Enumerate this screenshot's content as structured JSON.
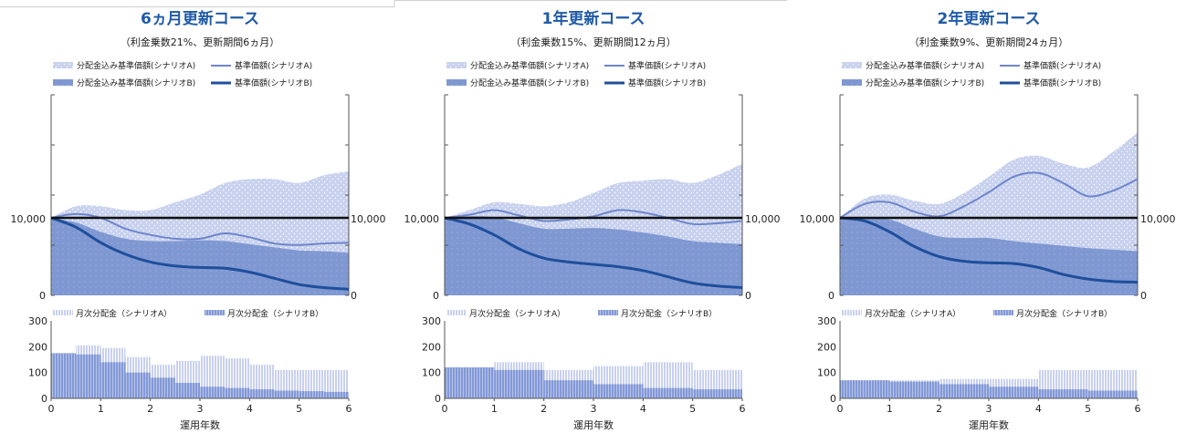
{
  "colors": {
    "light_band": "#c8d1ee",
    "dark_band": "#7f98d2",
    "line_a": "#6d86cc",
    "line_b": "#1f4f9c",
    "baseline": "#111111",
    "bar_a": "#c3ccec",
    "bar_b": "#8399d6",
    "title": "#1f5aa6"
  },
  "chart_data": [
    {
      "type": "area",
      "title": "6ヵ月更新コース",
      "subtitle": "（利金乗数21%、更新期間6ヵ月）",
      "legend_top": [
        "分配金込み基準価額(シナリオA)",
        "基準価額(シナリオA)",
        "分配金込み基準価額(シナリオB)",
        "基準価額(シナリオB)"
      ],
      "legend_bottom": [
        "月次分配金（シナリオA）",
        "月次分配金（シナリオB）"
      ],
      "xlabel": "運用年数",
      "x_ticks": [
        "0",
        "1",
        "2",
        "3",
        "4",
        "5",
        "6"
      ],
      "y_ticks_left": [
        "10,000",
        "0"
      ],
      "y_ticks_right": [
        "10,000",
        "0"
      ],
      "bar_y_ticks": [
        "300",
        "200",
        "100",
        "0"
      ],
      "x": [
        0,
        0.5,
        1,
        1.5,
        2,
        2.5,
        3,
        3.5,
        4,
        4.5,
        5,
        5.5,
        6
      ],
      "ylim": [
        0,
        27000
      ],
      "series": [
        {
          "name": "分配金込み基準価額(シナリオA)",
          "values": [
            10000,
            11500,
            11500,
            11000,
            11000,
            12000,
            13000,
            14500,
            15000,
            15000,
            14500,
            15500,
            16000
          ]
        },
        {
          "name": "基準価額(シナリオA)",
          "values": [
            10000,
            10500,
            10000,
            8600,
            7800,
            7300,
            7300,
            8000,
            7500,
            6700,
            6500,
            6700,
            6800
          ]
        },
        {
          "name": "分配金込み基準価額(シナリオB)",
          "values": [
            10000,
            9400,
            8200,
            7300,
            7000,
            7000,
            7100,
            7000,
            6600,
            6200,
            5800,
            5700,
            5500
          ]
        },
        {
          "name": "基準価額(シナリオB)",
          "values": [
            10000,
            8800,
            6800,
            5300,
            4300,
            3800,
            3600,
            3500,
            3000,
            2200,
            1400,
            1000,
            800
          ]
        }
      ],
      "bars": {
        "ylim": [
          0,
          300
        ],
        "years": [
          0,
          1,
          2,
          3,
          4,
          5,
          6
        ],
        "a_steps": [
          175,
          205,
          195,
          160,
          130,
          145,
          165,
          155,
          130,
          110,
          110,
          110
        ],
        "b_steps": [
          175,
          170,
          140,
          100,
          80,
          60,
          45,
          40,
          35,
          30,
          28,
          25
        ]
      }
    },
    {
      "type": "area",
      "title": "1年更新コース",
      "subtitle": "（利金乗数15%、更新期間12ヵ月）",
      "legend_top": [
        "分配金込み基準価額(シナリオA)",
        "基準価額(シナリオA)",
        "分配金込み基準価額(シナリオB)",
        "基準価額(シナリオB)"
      ],
      "legend_bottom": [
        "月次分配金（シナリオA）",
        "月次分配金（シナリオB）"
      ],
      "xlabel": "運用年数",
      "x_ticks": [
        "0",
        "1",
        "2",
        "3",
        "4",
        "5",
        "6"
      ],
      "y_ticks_left": [
        "10,000",
        "0"
      ],
      "y_ticks_right": [
        "10,000",
        "0"
      ],
      "bar_y_ticks": [
        "300",
        "200",
        "100",
        "0"
      ],
      "x": [
        0,
        0.5,
        1,
        1.5,
        2,
        2.5,
        3,
        3.5,
        4,
        4.5,
        5,
        5.5,
        6
      ],
      "ylim": [
        0,
        27000
      ],
      "series": [
        {
          "name": "分配金込み基準価額(シナリオA)",
          "values": [
            10000,
            11000,
            12000,
            11800,
            11500,
            12000,
            13200,
            14500,
            14800,
            15000,
            14500,
            15500,
            17000
          ]
        },
        {
          "name": "基準価額(シナリオA)",
          "values": [
            10000,
            10400,
            11000,
            10300,
            9600,
            9800,
            10200,
            11000,
            10700,
            10000,
            9200,
            9300,
            9600
          ]
        },
        {
          "name": "分配金込み基準価額(シナリオB)",
          "values": [
            10000,
            10200,
            10100,
            9300,
            8600,
            8600,
            8700,
            8500,
            8100,
            7600,
            7000,
            6800,
            6600
          ]
        },
        {
          "name": "基準価額(シナリオB)",
          "values": [
            10000,
            9200,
            7800,
            6000,
            4800,
            4300,
            4000,
            3700,
            3200,
            2400,
            1600,
            1200,
            1000
          ]
        }
      ],
      "bars": {
        "ylim": [
          0,
          300
        ],
        "years": [
          0,
          1,
          2,
          3,
          4,
          5,
          6
        ],
        "a_steps": [
          120,
          120,
          140,
          140,
          110,
          110,
          125,
          125,
          140,
          140,
          110,
          110
        ],
        "b_steps": [
          120,
          120,
          110,
          110,
          70,
          70,
          55,
          55,
          40,
          40,
          35,
          35
        ]
      }
    },
    {
      "type": "area",
      "title": "2年更新コース",
      "subtitle": "（利金乗数9%、更新期間24ヵ月）",
      "legend_top": [
        "分配金込み基準価額(シナリオA)",
        "基準価額(シナリオA)",
        "分配金込み基準価額(シナリオB)",
        "基準価額(シナリオB)"
      ],
      "legend_bottom": [
        "月次分配金（シナリオA）",
        "月次分配金（シナリオB）"
      ],
      "xlabel": "運用年数",
      "x_ticks": [
        "0",
        "1",
        "2",
        "3",
        "4",
        "5",
        "6"
      ],
      "y_ticks_left": [
        "10,000",
        "0"
      ],
      "y_ticks_right": [
        "10,000",
        "0"
      ],
      "bar_y_ticks": [
        "300",
        "200",
        "100",
        "0"
      ],
      "x": [
        0,
        0.5,
        1,
        1.5,
        2,
        2.5,
        3,
        3.5,
        4,
        4.5,
        5,
        5.5,
        6
      ],
      "ylim": [
        0,
        27000
      ],
      "series": [
        {
          "name": "分配金込み基準価額(シナリオA)",
          "values": [
            10000,
            12500,
            13000,
            12200,
            11800,
            13200,
            15300,
            17500,
            18000,
            17000,
            16500,
            18500,
            21000
          ]
        },
        {
          "name": "基準価額(シナリオA)",
          "values": [
            10000,
            11800,
            12000,
            10800,
            10200,
            11500,
            13300,
            15300,
            15800,
            14500,
            12800,
            13500,
            15000
          ]
        },
        {
          "name": "分配金込み基準価額(シナリオB)",
          "values": [
            10000,
            10000,
            9800,
            8600,
            7600,
            7400,
            7400,
            7000,
            6700,
            6400,
            6100,
            5900,
            5700
          ]
        },
        {
          "name": "基準価額(シナリオB)",
          "values": [
            10000,
            9600,
            8200,
            6300,
            5000,
            4400,
            4200,
            4100,
            3600,
            2700,
            2100,
            1800,
            1700
          ]
        }
      ],
      "bars": {
        "ylim": [
          0,
          300
        ],
        "years": [
          0,
          1,
          2,
          3,
          4,
          5,
          6
        ],
        "a_steps": [
          70,
          70,
          70,
          70,
          75,
          75,
          75,
          75,
          110,
          110,
          110,
          110
        ],
        "b_steps": [
          70,
          70,
          65,
          65,
          55,
          55,
          45,
          45,
          35,
          35,
          30,
          30
        ]
      }
    }
  ]
}
